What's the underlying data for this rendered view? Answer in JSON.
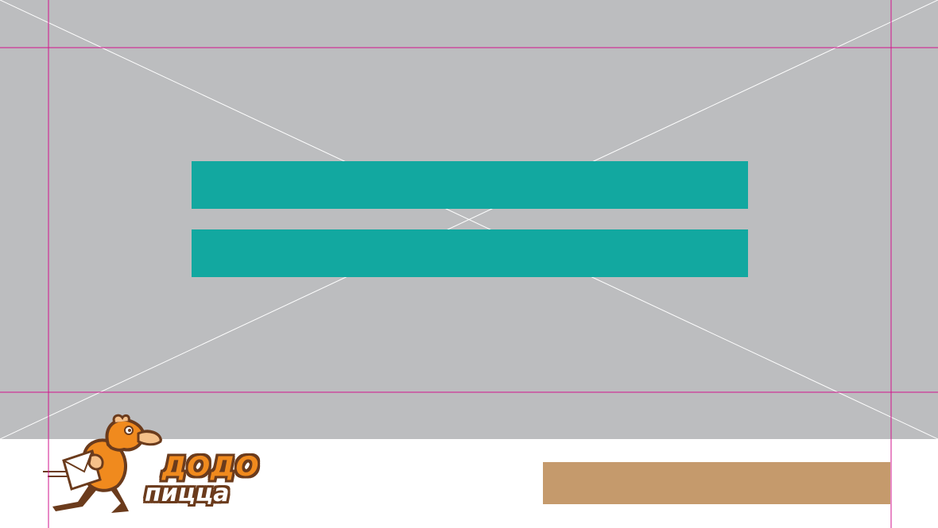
{
  "canvas": {
    "background_color": "#bcbdbf",
    "placeholder_line_color": "#ffffff"
  },
  "bars": [
    {
      "color": "#12a8a0"
    },
    {
      "color": "#12a8a0"
    }
  ],
  "guides": {
    "color": "#d2148c"
  },
  "logo": {
    "line1": "ДОДО",
    "line2": "пицца",
    "brand_orange": "#f08a1e",
    "brand_brown": "#6b3b1c",
    "icon": "dodo-bird-mascot-icon"
  },
  "cta": {
    "color": "#c59a6c"
  }
}
